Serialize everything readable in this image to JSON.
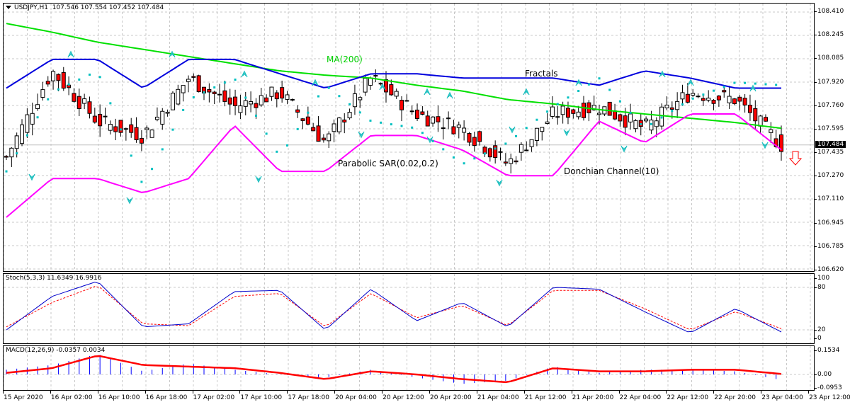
{
  "header": {
    "symbol": "USDJPY,H1",
    "open": "107.546",
    "high": "107.554",
    "low": "107.452",
    "close": "107.484"
  },
  "main_panel": {
    "y_ticks": [
      "108.410",
      "108.245",
      "108.085",
      "107.920",
      "107.760",
      "107.595",
      "107.435",
      "107.270",
      "107.110",
      "106.945",
      "106.785",
      "106.620"
    ],
    "current_price": "107.484",
    "annotations": {
      "ma": "MA(200)",
      "fractals": "Fractals",
      "sar": "Parabolic SAR(0.02,0.2)",
      "donchian": "Donchian Channel(10)"
    },
    "signal": "down-arrow"
  },
  "stoch_panel": {
    "label": "Stoch(5,3,3) 11.6349 16.9916",
    "y_ticks": [
      "100",
      "80",
      "20",
      "0"
    ]
  },
  "macd_panel": {
    "label": "MACD(12,26,9) -0.0357 0.0034",
    "y_ticks": [
      "0.1534",
      "0.00",
      "-0.0953"
    ]
  },
  "x_axis": {
    "ticks": [
      "15 Apr 2020",
      "16 Apr 02:00",
      "16 Apr 10:00",
      "16 Apr 18:00",
      "17 Apr 02:00",
      "17 Apr 10:00",
      "17 Apr 18:00",
      "20 Apr 04:00",
      "20 Apr 12:00",
      "20 Apr 20:00",
      "21 Apr 04:00",
      "21 Apr 12:00",
      "21 Apr 20:00",
      "22 Apr 04:00",
      "22 Apr 12:00",
      "22 Apr 20:00",
      "23 Apr 04:00",
      "23 Apr 12:00"
    ]
  },
  "colors": {
    "bull_body": "#ffffff",
    "bear_body": "#ff0000",
    "ma200": "#00e000",
    "donchian_upper": "#0000dd",
    "donchian_lower": "#ff00ff",
    "sar": "#00c0c0",
    "fractals": "#20c0c0",
    "stoch_main": "#0000cc",
    "stoch_signal": "#ff0000",
    "macd_hist": "#0000ff",
    "macd_signal": "#ff0000",
    "signal_arrow": "#ff0000"
  },
  "chart_data": [
    {
      "type": "candlestick",
      "title": "USDJPY,H1",
      "ylim": [
        106.62,
        108.41
      ],
      "x": [
        "15 Apr 2020",
        "16 Apr 02:00",
        "16 Apr 10:00",
        "16 Apr 18:00",
        "17 Apr 02:00",
        "17 Apr 10:00",
        "17 Apr 18:00",
        "20 Apr 04:00",
        "20 Apr 12:00",
        "20 Apr 20:00",
        "21 Apr 04:00",
        "21 Apr 12:00",
        "21 Apr 20:00",
        "22 Apr 04:00",
        "22 Apr 12:00",
        "22 Apr 20:00",
        "23 Apr 04:00",
        "23 Apr 12:00"
      ],
      "close_approx": [
        107.4,
        108.0,
        107.65,
        107.55,
        107.95,
        107.75,
        107.85,
        107.5,
        107.95,
        107.7,
        107.6,
        107.35,
        107.7,
        107.75,
        107.6,
        107.85,
        107.8,
        107.484
      ],
      "series": [
        {
          "name": "MA(200)",
          "values": [
            108.33,
            108.27,
            108.2,
            108.15,
            108.1,
            108.05,
            108.0,
            107.97,
            107.95,
            107.9,
            107.86,
            107.8,
            107.77,
            107.73,
            107.7,
            107.67,
            107.64,
            107.6
          ]
        },
        {
          "name": "Donchian upper",
          "values": [
            107.88,
            108.08,
            108.08,
            107.88,
            108.08,
            108.08,
            107.98,
            107.88,
            107.98,
            107.98,
            107.95,
            107.95,
            107.95,
            107.9,
            108.0,
            107.95,
            107.88,
            107.88
          ]
        },
        {
          "name": "Donchian lower",
          "values": [
            106.98,
            107.25,
            107.25,
            107.15,
            107.25,
            107.62,
            107.3,
            107.3,
            107.55,
            107.55,
            107.45,
            107.27,
            107.27,
            107.65,
            107.5,
            107.7,
            107.7,
            107.45
          ]
        },
        {
          "name": "Parabolic SAR",
          "values": [
            107.3,
            107.85,
            108.0,
            107.2,
            107.8,
            107.95,
            107.4,
            107.9,
            107.65,
            107.6,
            107.35,
            107.5,
            107.75,
            107.95,
            107.6,
            107.8,
            107.92,
            107.9
          ]
        }
      ],
      "annotations": [
        "MA(200)",
        "Fractals",
        "Parabolic SAR(0.02,0.2)",
        "Donchian Channel(10)"
      ]
    },
    {
      "type": "line",
      "title": "Stoch(5,3,3)",
      "ylim": [
        0,
        100
      ],
      "x": [
        "15 Apr 2020",
        "16 Apr 02:00",
        "16 Apr 10:00",
        "16 Apr 18:00",
        "17 Apr 02:00",
        "17 Apr 10:00",
        "17 Apr 18:00",
        "20 Apr 04:00",
        "20 Apr 12:00",
        "20 Apr 20:00",
        "21 Apr 04:00",
        "21 Apr 12:00",
        "21 Apr 20:00",
        "22 Apr 04:00",
        "22 Apr 12:00",
        "22 Apr 20:00",
        "23 Apr 04:00",
        "23 Apr 12:00"
      ],
      "series": [
        {
          "name": "%K",
          "values": [
            15,
            70,
            95,
            20,
            25,
            78,
            80,
            15,
            82,
            30,
            60,
            20,
            85,
            82,
            45,
            10,
            50,
            11.63
          ]
        },
        {
          "name": "%D",
          "values": [
            20,
            60,
            88,
            25,
            22,
            70,
            75,
            20,
            75,
            35,
            55,
            22,
            80,
            80,
            50,
            15,
            45,
            16.99
          ]
        }
      ]
    },
    {
      "type": "bar+line",
      "title": "MACD(12,26,9)",
      "ylim": [
        -0.0953,
        0.1534
      ],
      "x": [
        "15 Apr 2020",
        "16 Apr 02:00",
        "16 Apr 10:00",
        "16 Apr 18:00",
        "17 Apr 02:00",
        "17 Apr 10:00",
        "17 Apr 18:00",
        "20 Apr 04:00",
        "20 Apr 12:00",
        "20 Apr 20:00",
        "21 Apr 04:00",
        "21 Apr 12:00",
        "21 Apr 20:00",
        "22 Apr 04:00",
        "22 Apr 12:00",
        "22 Apr 20:00",
        "23 Apr 04:00",
        "23 Apr 12:00"
      ],
      "series": [
        {
          "name": "MACD histogram",
          "values": [
            0.03,
            0.06,
            0.13,
            0.02,
            0.07,
            0.03,
            0.0,
            -0.02,
            0.03,
            -0.02,
            -0.06,
            -0.04,
            0.05,
            0.01,
            0.03,
            0.03,
            0.02,
            -0.0357
          ]
        },
        {
          "name": "Signal",
          "values": [
            0.01,
            0.04,
            0.12,
            0.06,
            0.05,
            0.04,
            0.01,
            -0.03,
            0.02,
            0.0,
            -0.03,
            -0.05,
            0.04,
            0.02,
            0.02,
            0.03,
            0.03,
            0.0034
          ]
        }
      ]
    }
  ]
}
